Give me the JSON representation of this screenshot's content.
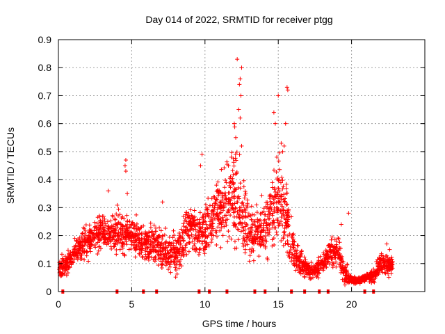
{
  "chart_data": {
    "type": "scatter",
    "title": "Day 014 of 2022, SRMTID for receiver ptgg",
    "xlabel": "GPS time / hours",
    "ylabel": "SRMTID / TECUs",
    "xlim": [
      0,
      25
    ],
    "ylim": [
      0,
      0.9
    ],
    "grid": true,
    "marker": "+",
    "marker_color": "#ff0000",
    "xticks": [
      0,
      5,
      10,
      15,
      20
    ],
    "yticks": [
      0,
      0.1,
      0.2,
      0.3,
      0.4,
      0.5,
      0.6,
      0.7,
      0.8,
      0.9
    ],
    "xtick_labels": [
      "0",
      "5",
      "10",
      "15",
      "20"
    ],
    "ytick_labels": [
      "0",
      "0.1",
      "0.2",
      "0.3",
      "0.4",
      "0.5",
      "0.6",
      "0.7",
      "0.8",
      "0.9"
    ],
    "series": [
      {
        "name": "SRMTID",
        "envelope": [
          [
            0.0,
            0.07,
            0.03
          ],
          [
            0.5,
            0.1,
            0.03
          ],
          [
            1.0,
            0.13,
            0.03
          ],
          [
            1.5,
            0.16,
            0.04
          ],
          [
            2.0,
            0.18,
            0.04
          ],
          [
            2.5,
            0.2,
            0.04
          ],
          [
            3.0,
            0.22,
            0.05
          ],
          [
            3.5,
            0.2,
            0.04
          ],
          [
            4.0,
            0.22,
            0.06
          ],
          [
            4.5,
            0.19,
            0.05
          ],
          [
            5.0,
            0.2,
            0.05
          ],
          [
            5.5,
            0.18,
            0.05
          ],
          [
            6.0,
            0.17,
            0.05
          ],
          [
            6.5,
            0.17,
            0.05
          ],
          [
            7.0,
            0.15,
            0.05
          ],
          [
            7.5,
            0.14,
            0.04
          ],
          [
            8.0,
            0.13,
            0.05
          ],
          [
            8.5,
            0.18,
            0.06
          ],
          [
            9.0,
            0.24,
            0.07
          ],
          [
            9.5,
            0.2,
            0.06
          ],
          [
            10.0,
            0.22,
            0.07
          ],
          [
            10.5,
            0.26,
            0.07
          ],
          [
            11.0,
            0.3,
            0.08
          ],
          [
            11.5,
            0.32,
            0.1
          ],
          [
            12.0,
            0.35,
            0.13
          ],
          [
            12.5,
            0.3,
            0.12
          ],
          [
            13.0,
            0.22,
            0.07
          ],
          [
            13.5,
            0.2,
            0.07
          ],
          [
            14.0,
            0.21,
            0.07
          ],
          [
            14.5,
            0.27,
            0.09
          ],
          [
            15.0,
            0.33,
            0.12
          ],
          [
            15.5,
            0.28,
            0.1
          ],
          [
            16.0,
            0.15,
            0.06
          ],
          [
            16.5,
            0.1,
            0.04
          ],
          [
            17.0,
            0.08,
            0.02
          ],
          [
            17.5,
            0.07,
            0.02
          ],
          [
            18.0,
            0.1,
            0.03
          ],
          [
            18.5,
            0.14,
            0.04
          ],
          [
            19.0,
            0.15,
            0.04
          ],
          [
            19.5,
            0.07,
            0.03
          ],
          [
            20.0,
            0.04,
            0.01
          ],
          [
            20.5,
            0.04,
            0.01
          ],
          [
            21.0,
            0.05,
            0.01
          ],
          [
            21.5,
            0.06,
            0.02
          ],
          [
            22.0,
            0.1,
            0.03
          ],
          [
            22.5,
            0.1,
            0.03
          ],
          [
            22.8,
            0.09,
            0.02
          ]
        ],
        "peaks": [
          [
            12.2,
            0.83
          ],
          [
            12.5,
            0.8
          ],
          [
            12.4,
            0.76
          ],
          [
            12.35,
            0.74
          ],
          [
            12.45,
            0.7
          ],
          [
            12.3,
            0.65
          ],
          [
            12.4,
            0.62
          ],
          [
            12.0,
            0.6
          ],
          [
            12.1,
            0.55
          ],
          [
            12.5,
            0.52
          ],
          [
            15.6,
            0.73
          ],
          [
            15.65,
            0.72
          ],
          [
            15.0,
            0.7
          ],
          [
            14.7,
            0.64
          ],
          [
            14.8,
            0.6
          ],
          [
            15.5,
            0.6
          ],
          [
            15.2,
            0.53
          ],
          [
            15.4,
            0.52
          ],
          [
            15.3,
            0.5
          ],
          [
            14.9,
            0.48
          ],
          [
            9.8,
            0.49
          ],
          [
            9.7,
            0.45
          ],
          [
            4.6,
            0.47
          ],
          [
            4.55,
            0.45
          ],
          [
            4.6,
            0.43
          ],
          [
            4.7,
            0.35
          ],
          [
            11.8,
            0.48
          ],
          [
            11.6,
            0.45
          ],
          [
            3.4,
            0.36
          ],
          [
            7.1,
            0.32
          ],
          [
            19.8,
            0.28
          ],
          [
            19.3,
            0.24
          ],
          [
            22.4,
            0.17
          ],
          [
            22.6,
            0.15
          ]
        ],
        "gap_markers_x": [
          0.3,
          4.0,
          5.8,
          6.7,
          9.6,
          10.3,
          11.5,
          13.4,
          14.1,
          15.9,
          16.8,
          17.8,
          18.4,
          20.9,
          21.5
        ]
      }
    ]
  }
}
